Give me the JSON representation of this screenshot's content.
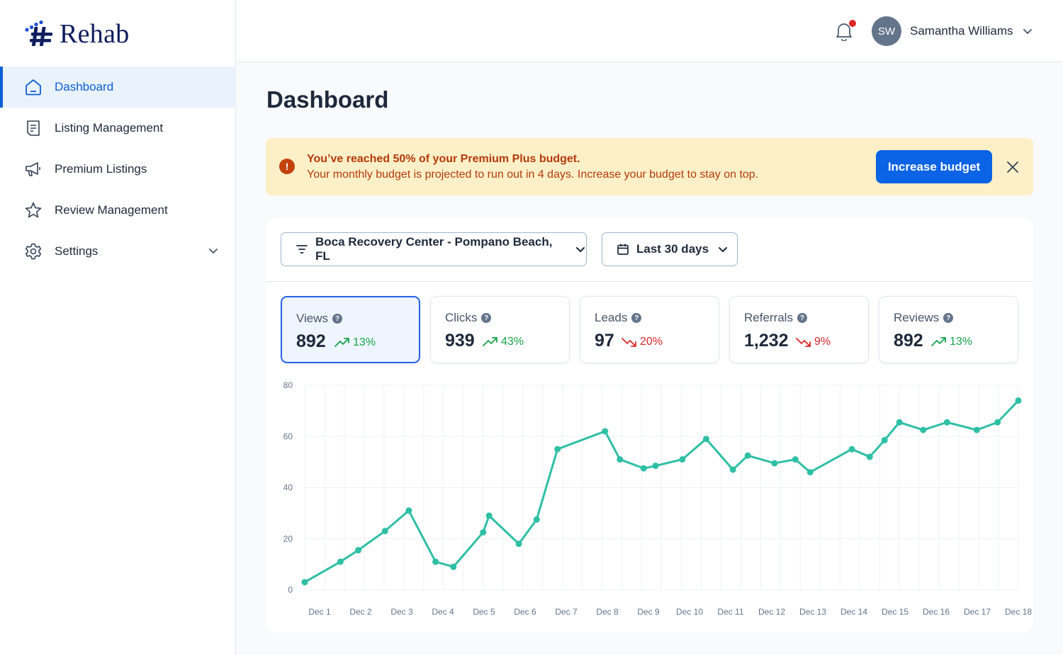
{
  "brand": {
    "name": "Rehab"
  },
  "sidebar": {
    "items": [
      {
        "label": "Dashboard",
        "icon": "home-icon",
        "active": true
      },
      {
        "label": "Listing Management",
        "icon": "clipboard-list-icon"
      },
      {
        "label": "Premium Listings",
        "icon": "megaphone-icon"
      },
      {
        "label": "Review Management",
        "icon": "star-icon"
      },
      {
        "label": "Settings",
        "icon": "gear-icon",
        "expandable": true
      }
    ]
  },
  "header": {
    "notifications_icon": "bell-icon",
    "has_unread": true,
    "user": {
      "initials": "SW",
      "name": "Samantha Williams"
    }
  },
  "page": {
    "title": "Dashboard"
  },
  "alert": {
    "icon": "exclamation-circle-icon",
    "title": "You’ve reached 50% of your Premium Plus budget.",
    "body": "Your monthly budget is projected to run out in 4 days. Increase your budget to stay on top.",
    "button": "Increase budget",
    "close_icon": "close-icon"
  },
  "filters": {
    "location": "Boca Recovery Center - Pompano Beach, FL",
    "date_range": "Last 30 days"
  },
  "stats": [
    {
      "label": "Views",
      "value": "892",
      "change": "13%",
      "trend": "up",
      "active": true
    },
    {
      "label": "Clicks",
      "value": "939",
      "change": "43%",
      "trend": "up"
    },
    {
      "label": "Leads",
      "value": "97",
      "change": "20%",
      "trend": "down"
    },
    {
      "label": "Referrals",
      "value": "1,232",
      "change": "9%",
      "trend": "down"
    },
    {
      "label": "Reviews",
      "value": "892",
      "change": "13%",
      "trend": "up"
    }
  ],
  "colors": {
    "accent": "#0b63e5",
    "line": "#2fbfa5",
    "up": "#16a34a",
    "down": "#dc2626",
    "alert_bg": "#fdf0c8",
    "alert_text": "#b43a0a"
  },
  "chart_data": {
    "type": "line",
    "categories": [
      "Dec 1",
      "Dec 2",
      "Dec 3",
      "Dec 4",
      "Dec 5",
      "Dec 6",
      "Dec 7",
      "Dec 8",
      "Dec 9",
      "Dec 10",
      "Dec 11",
      "Dec 12",
      "Dec 13",
      "Dec 14",
      "Dec 15",
      "Dec 16",
      "Dec 17",
      "Dec 18"
    ],
    "ylim": [
      0,
      80
    ],
    "yticks": [
      0,
      20,
      40,
      60,
      80
    ],
    "grid": true,
    "x": [
      0.0,
      0.6,
      0.9,
      1.35,
      1.75,
      2.2,
      2.5,
      3.0,
      3.1,
      3.6,
      3.9,
      4.25,
      5.05,
      5.3,
      5.7,
      5.9,
      6.35,
      6.75,
      7.2,
      7.45,
      7.9,
      8.25,
      8.5,
      9.2,
      9.5,
      9.75,
      10.0,
      10.4,
      10.8,
      11.3,
      11.65,
      12.0,
      12.3,
      12.9,
      13.2,
      13.55,
      13.9
    ],
    "values": [
      3,
      11,
      15.5,
      23,
      31,
      11,
      9,
      22.5,
      29,
      18,
      27.5,
      55,
      62,
      51,
      47.5,
      48.5,
      51,
      59,
      47,
      52.5,
      49.5,
      51,
      46,
      55,
      52,
      58.5,
      65.5,
      62.5,
      65.5,
      62.5,
      65.5,
      74,
      74,
      74,
      74,
      74,
      74
    ]
  }
}
